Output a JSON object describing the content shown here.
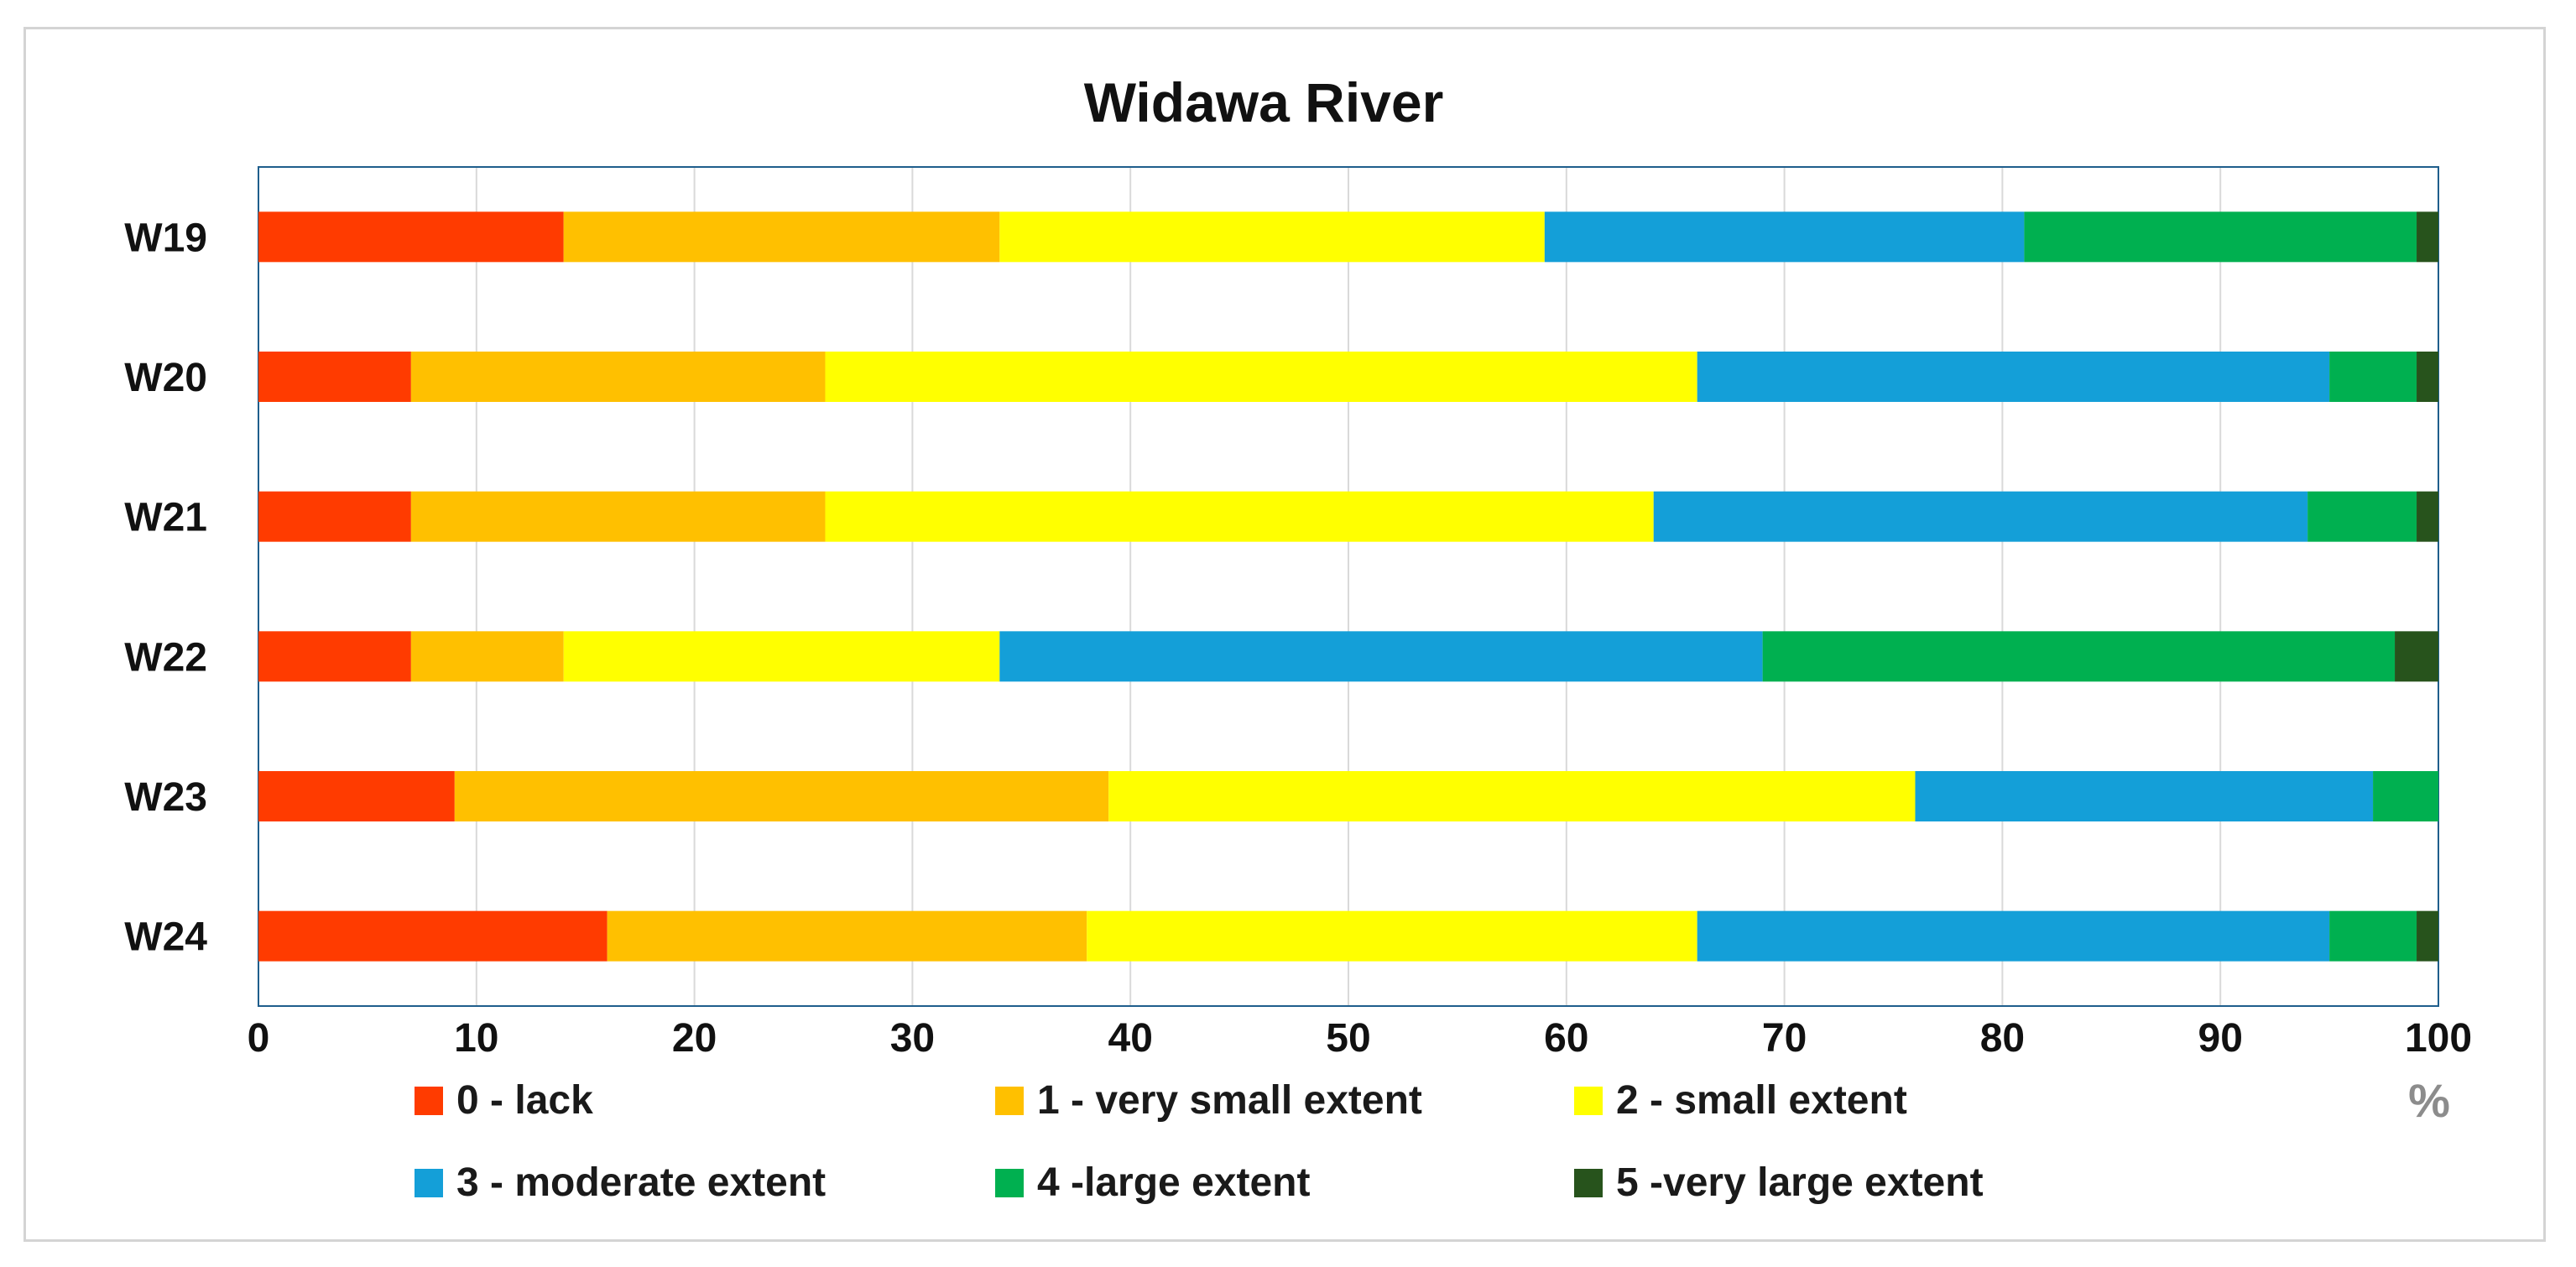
{
  "chart_data": {
    "type": "bar",
    "orientation": "horizontal",
    "stacked": true,
    "title": "Widawa River",
    "xlabel": "%",
    "ylabel": "",
    "xlim": [
      0,
      100
    ],
    "xticks": [
      0,
      10,
      20,
      30,
      40,
      50,
      60,
      70,
      80,
      90,
      100
    ],
    "grid": true,
    "legend_position": "bottom",
    "categories": [
      "W19",
      "W20",
      "W21",
      "W22",
      "W23",
      "W24"
    ],
    "series": [
      {
        "name": "0 - lack",
        "color": "#ff3b00",
        "values": [
          14,
          7,
          7,
          7,
          9,
          16
        ]
      },
      {
        "name": "1 - very small extent",
        "color": "#ffc000",
        "values": [
          20,
          19,
          19,
          7,
          30,
          22
        ]
      },
      {
        "name": "2 - small extent",
        "color": "#ffff00",
        "values": [
          25,
          40,
          38,
          20,
          37,
          28
        ]
      },
      {
        "name": "3 - moderate extent",
        "color": "#149fd8",
        "values": [
          22,
          29,
          30,
          35,
          21,
          29
        ]
      },
      {
        "name": "4 -large extent",
        "color": "#00b050",
        "values": [
          18,
          4,
          5,
          29,
          3,
          4
        ]
      },
      {
        "name": "5 -very large extent",
        "color": "#27531c",
        "values": [
          1,
          1,
          1,
          2,
          0,
          1
        ]
      }
    ]
  }
}
